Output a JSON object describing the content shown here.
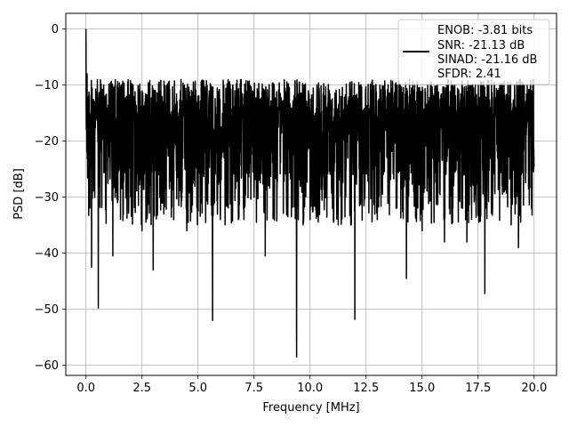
{
  "chart_data": {
    "type": "line",
    "title": "",
    "xlabel": "Frequency [MHz]",
    "ylabel": "PSD [dB]",
    "xlim": [
      -0.9,
      21.0
    ],
    "ylim": [
      -61.8,
      2.8
    ],
    "grid": true,
    "legend": {
      "placement": "upper-right",
      "entries": [
        "ENOB: -3.81 bits",
        "SNR: -21.13 dB",
        "SINAD: -21.16 dB",
        "SFDR: 2.41"
      ]
    },
    "x_ticks": [
      {
        "value": 0.0,
        "label": "0.0"
      },
      {
        "value": 2.5,
        "label": "2.5"
      },
      {
        "value": 5.0,
        "label": "5.0"
      },
      {
        "value": 7.5,
        "label": "7.5"
      },
      {
        "value": 10.0,
        "label": "10.0"
      },
      {
        "value": 12.5,
        "label": "12.5"
      },
      {
        "value": 15.0,
        "label": "15.0"
      },
      {
        "value": 17.5,
        "label": "17.5"
      },
      {
        "value": 20.0,
        "label": "20.0"
      }
    ],
    "y_ticks": [
      {
        "value": 0,
        "label": "0"
      },
      {
        "value": -10,
        "label": "−10"
      },
      {
        "value": -20,
        "label": "−20"
      },
      {
        "value": -30,
        "label": "−30"
      },
      {
        "value": -40,
        "label": "−40"
      },
      {
        "value": -50,
        "label": "−50"
      },
      {
        "value": -60,
        "label": "−60"
      }
    ],
    "series": [
      {
        "color": "#000000",
        "x_range": [
          0.0,
          20.0
        ],
        "description_points": {
          "x": [
            0.0,
            0.05,
            0.1,
            0.2,
            0.25,
            0.55,
            1.2,
            2.5,
            3.0,
            4.5,
            5.65,
            6.0,
            6.8,
            7.5,
            8.0,
            9.4,
            10.0,
            11.0,
            12.0,
            13.0,
            14.3,
            15.0,
            16.0,
            17.0,
            17.8,
            19.3,
            20.0
          ],
          "y": [
            0.0,
            -8.0,
            -18.0,
            -24.0,
            -42.5,
            -49.8,
            -40.5,
            -36.0,
            -43.0,
            -36.0,
            -52.0,
            -34.0,
            -34.0,
            -30.0,
            -40.5,
            -58.5,
            -34.0,
            -32.0,
            -51.8,
            -34.0,
            -44.5,
            -36.0,
            -38.0,
            -38.0,
            -47.2,
            -39.0,
            -24.0
          ]
        },
        "noise_floor_db": -20,
        "upper_envelope_db": -9,
        "lower_envelope_db": -35
      }
    ]
  }
}
